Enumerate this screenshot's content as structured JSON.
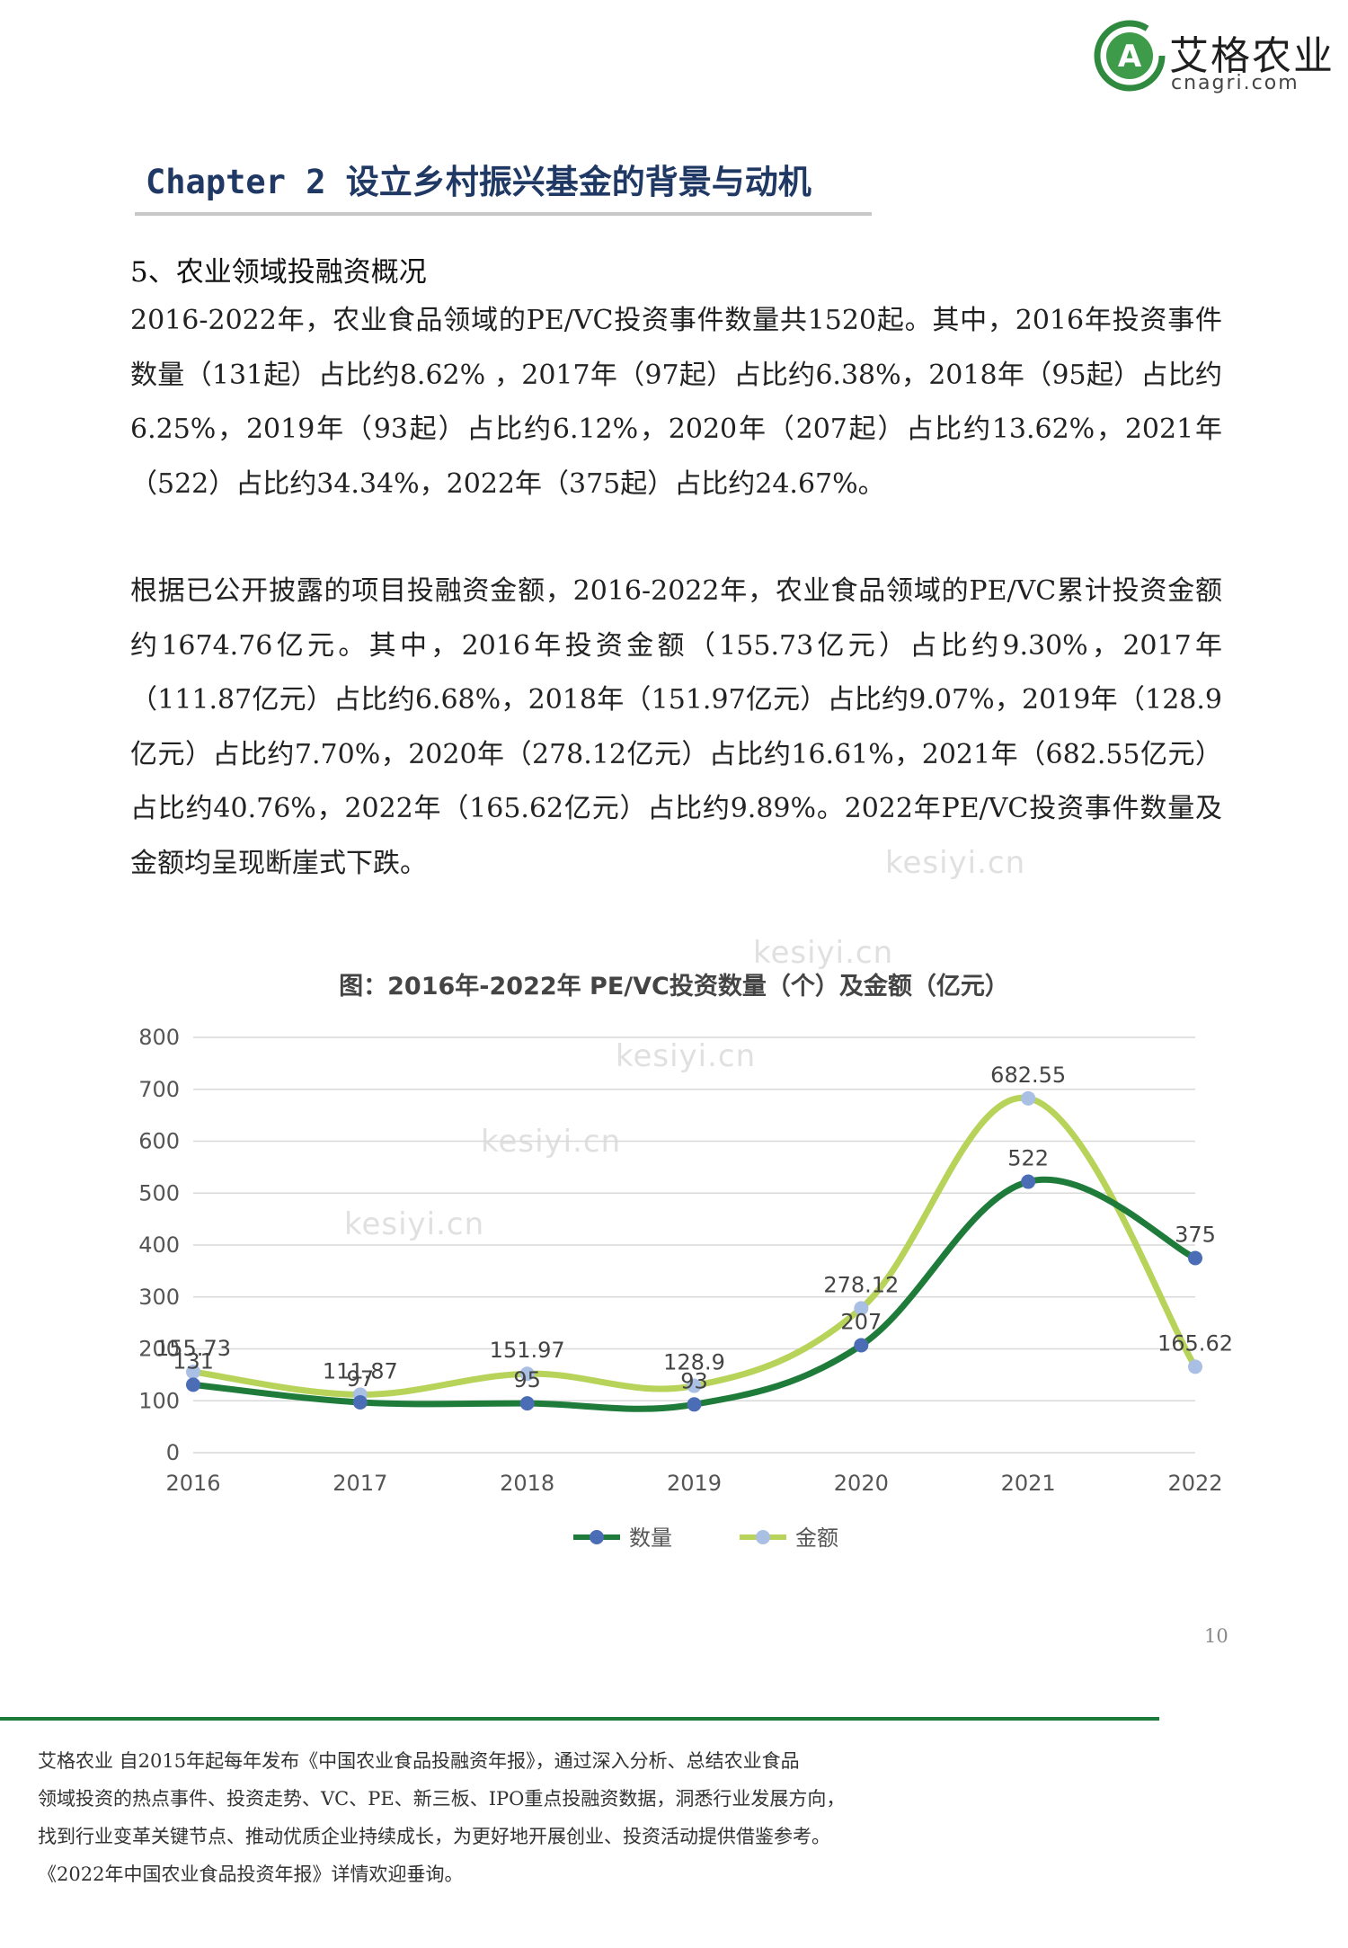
{
  "logo": {
    "name_cn": "艾格农业",
    "domain": "cnagri.com",
    "mark": "A"
  },
  "chapter_title": "Chapter 2 设立乡村振兴基金的背景与动机",
  "section_title": "5、农业领域投融资概况",
  "paragraph_1": "2016-2022年，农业食品领域的PE/VC投资事件数量共1520起。其中，2016年投资事件数量（131起）占比约8.62% ，2017年（97起）占比约6.38%，2018年（95起）占比约6.25%，2019年（93起）占比约6.12%，2020年（207起）占比约13.62%，2021年（522）占比约34.34%，2022年（375起）占比约24.67%。",
  "paragraph_2": "根据已公开披露的项目投融资金额，2016-2022年，农业食品领域的PE/VC累计投资金额约1674.76亿元。其中，2016年投资金额（155.73亿元）占比约9.30%，2017年（111.87亿元）占比约6.68%，2018年（151.97亿元）占比约9.07%，2019年（128.9亿元）占比约7.70%，2020年（278.12亿元）占比约16.61%，2021年（682.55亿元）占比约40.76%，2022年（165.62亿元）占比约9.89%。2022年PE/VC投资事件数量及金额均呈现断崖式下跌。",
  "watermarks": [
    "kesiyi.cn",
    "kesiyi.cn",
    "kesiyi.cn",
    "kesiyi.cn",
    "kesiyi.cn"
  ],
  "chart_data": {
    "type": "line",
    "title": "图：2016年-2022年 PE/VC投资数量（个）及金额（亿元）",
    "categories": [
      "2016",
      "2017",
      "2018",
      "2019",
      "2020",
      "2021",
      "2022"
    ],
    "series": [
      {
        "name": "数量",
        "color": "#1e7b3a",
        "marker_color": "#4a6db5",
        "values": [
          131,
          97,
          95,
          93,
          207,
          522,
          375
        ]
      },
      {
        "name": "金额",
        "color": "#b8d35a",
        "marker_color": "#a9bfe3",
        "values": [
          155.73,
          111.87,
          151.97,
          128.9,
          278.12,
          682.55,
          165.62
        ]
      }
    ],
    "y_ticks": [
      "0",
      "100",
      "200",
      "300",
      "400",
      "500",
      "600",
      "700",
      "800"
    ],
    "ylim": [
      0,
      800
    ],
    "grid": true,
    "smooth": true,
    "legend_position": "bottom"
  },
  "page_number": "10",
  "footer_lines": [
    "艾格农业 自2015年起每年发布《中国农业食品投融资年报》，通过深入分析、总结农业食品",
    "领域投资的热点事件、投资走势、VC、PE、新三板、IPO重点投融资数据，洞悉行业发展方向，",
    "找到行业变革关键节点、推动优质企业持续成长，为更好地开展创业、投资活动提供借鉴参考。",
    "《2022年中国农业食品投资年报》详情欢迎垂询。"
  ]
}
